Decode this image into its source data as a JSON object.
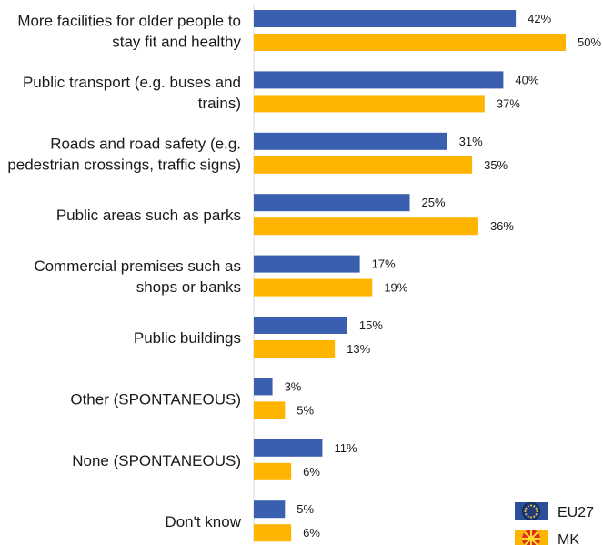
{
  "chart_data": {
    "type": "bar",
    "orientation": "horizontal",
    "categories": [
      [
        "More facilities for older people to",
        "stay fit and healthy"
      ],
      [
        "Public transport (e.g. buses and",
        "trains)"
      ],
      [
        "Roads and road safety (e.g.",
        "pedestrian crossings, traffic signs)"
      ],
      [
        "Public areas such as parks"
      ],
      [
        "Commercial premises such as",
        "shops or banks"
      ],
      [
        "Public buildings"
      ],
      [
        "Other (SPONTANEOUS)"
      ],
      [
        "None (SPONTANEOUS)"
      ],
      [
        "Don't know"
      ]
    ],
    "series": [
      {
        "name": "EU27",
        "color": "#3a5fae",
        "values": [
          42,
          40,
          31,
          25,
          17,
          15,
          3,
          11,
          5
        ]
      },
      {
        "name": "MK",
        "color": "#ffb400",
        "values": [
          50,
          37,
          35,
          36,
          19,
          13,
          5,
          6,
          6
        ]
      }
    ],
    "value_suffix": "%",
    "xlim": [
      0,
      50
    ],
    "grid": false,
    "legend_position": "bottom-right",
    "legend_icons": [
      "eu-flag-icon",
      "mk-flag-icon"
    ]
  }
}
